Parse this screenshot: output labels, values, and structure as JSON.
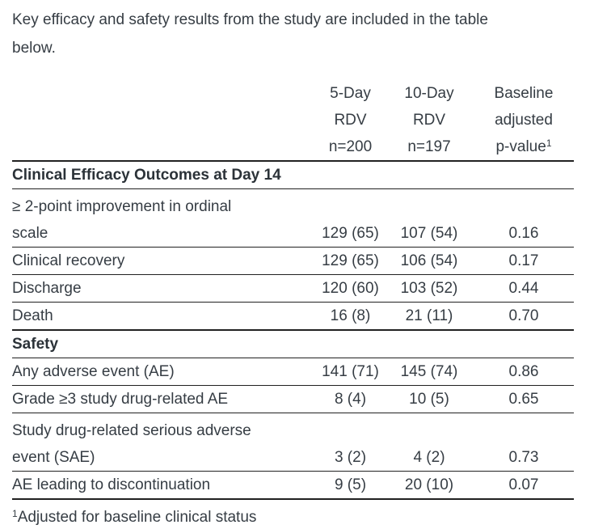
{
  "intro": "Key efficacy and safety results from the study are included in the table\nbelow.",
  "table": {
    "columns": [
      {
        "lines": [
          "5-Day",
          "RDV",
          "n=200"
        ]
      },
      {
        "lines": [
          "10-Day",
          "RDV",
          "n=197"
        ]
      },
      {
        "lines": [
          "Baseline",
          "adjusted",
          "p-value"
        ],
        "footnote_marker": "1"
      }
    ],
    "sections": [
      {
        "title": "Clinical Efficacy Outcomes at Day 14",
        "rows": [
          {
            "label": "≥ 2-point improvement in ordinal\nscale",
            "values": [
              "129 (65)",
              "107 (54)",
              "0.16"
            ]
          },
          {
            "label": "Clinical recovery",
            "values": [
              "129 (65)",
              "106 (54)",
              "0.17"
            ]
          },
          {
            "label": "Discharge",
            "values": [
              "120 (60)",
              "103 (52)",
              "0.44"
            ]
          },
          {
            "label": "Death",
            "values": [
              "16 (8)",
              "21 (11)",
              "0.70"
            ]
          }
        ]
      },
      {
        "title": "Safety",
        "rows": [
          {
            "label": "Any adverse event (AE)",
            "values": [
              "141 (71)",
              "145 (74)",
              "0.86"
            ]
          },
          {
            "label": "Grade ≥3 study drug-related AE",
            "values": [
              "8 (4)",
              "10 (5)",
              "0.65"
            ]
          },
          {
            "label": "Study drug-related serious adverse\nevent (SAE)",
            "values": [
              "3 (2)",
              "4 (2)",
              "0.73"
            ]
          },
          {
            "label": "AE leading to discontinuation",
            "values": [
              "9 (5)",
              "20 (10)",
              "0.07"
            ]
          }
        ]
      }
    ]
  },
  "footnote": {
    "marker": "1",
    "text": "Adjusted for baseline clinical status"
  }
}
